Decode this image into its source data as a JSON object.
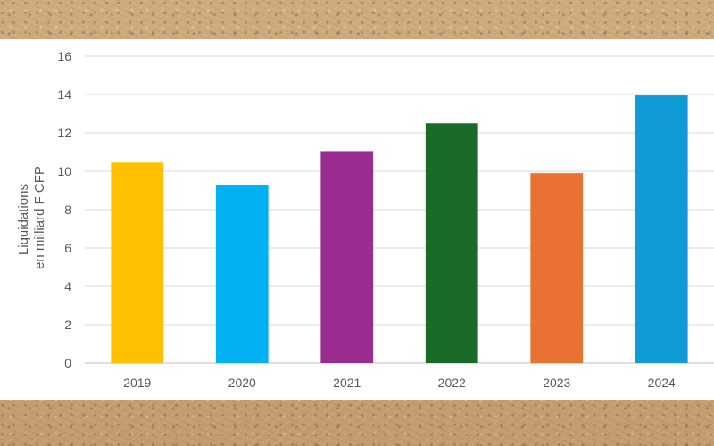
{
  "chart_data": {
    "type": "bar",
    "categories": [
      "2019",
      "2020",
      "2021",
      "2022",
      "2023",
      "2024"
    ],
    "values": [
      10.45,
      9.3,
      11.05,
      12.5,
      9.9,
      13.95
    ],
    "colors": [
      "#ffc000",
      "#00b0f0",
      "#9b2c8f",
      "#1a6b28",
      "#e97132",
      "#109bd6"
    ],
    "ylabel_lines": [
      "Liquidations",
      "en milliard F CFP"
    ],
    "ylim": [
      0,
      16
    ],
    "yticks": [
      0,
      2,
      4,
      6,
      8,
      10,
      12,
      14,
      16
    ],
    "grid": true,
    "legend": "none"
  }
}
